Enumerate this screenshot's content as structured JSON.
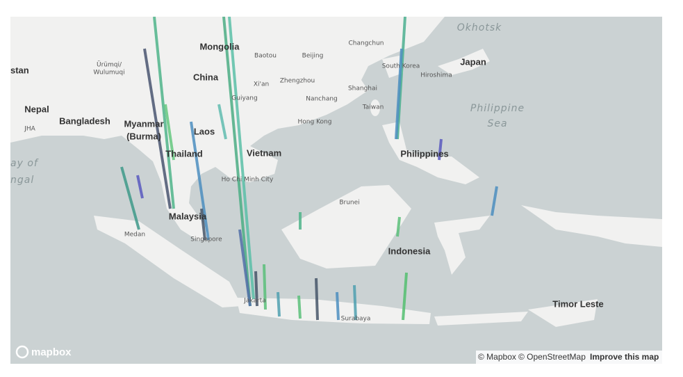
{
  "map": {
    "labels": [
      "Okhotsk",
      "Mongolia",
      "Baotou",
      "Beijing",
      "Changchun",
      "South Korea",
      "Japan",
      "Hiroshima",
      "Ürümqi/",
      "Wulumuqi",
      "stan",
      "China",
      "Xi'an",
      "Zhengzhou",
      "Shanghai",
      "Nanchang",
      "Guiyang",
      "Taiwan",
      "Hong Kong",
      "Philippine",
      "Sea",
      "Nepal",
      "JHA",
      "Bangladesh",
      "Myanmar",
      "(Burma)",
      "Laos",
      "Thailand",
      "Vietnam",
      "Ho Chi Minh City",
      "Philippines",
      "ay of",
      "ngal",
      "Brunei",
      "Malaysia",
      "Medan",
      "Singapore",
      "Indonesia",
      "Jakarta",
      "Surabaya",
      "Timor Leste"
    ]
  },
  "attribution": {
    "logo": "mapbox",
    "mapbox": "© Mapbox",
    "osm": "© OpenStreetMap",
    "improve": "Improve this map"
  }
}
